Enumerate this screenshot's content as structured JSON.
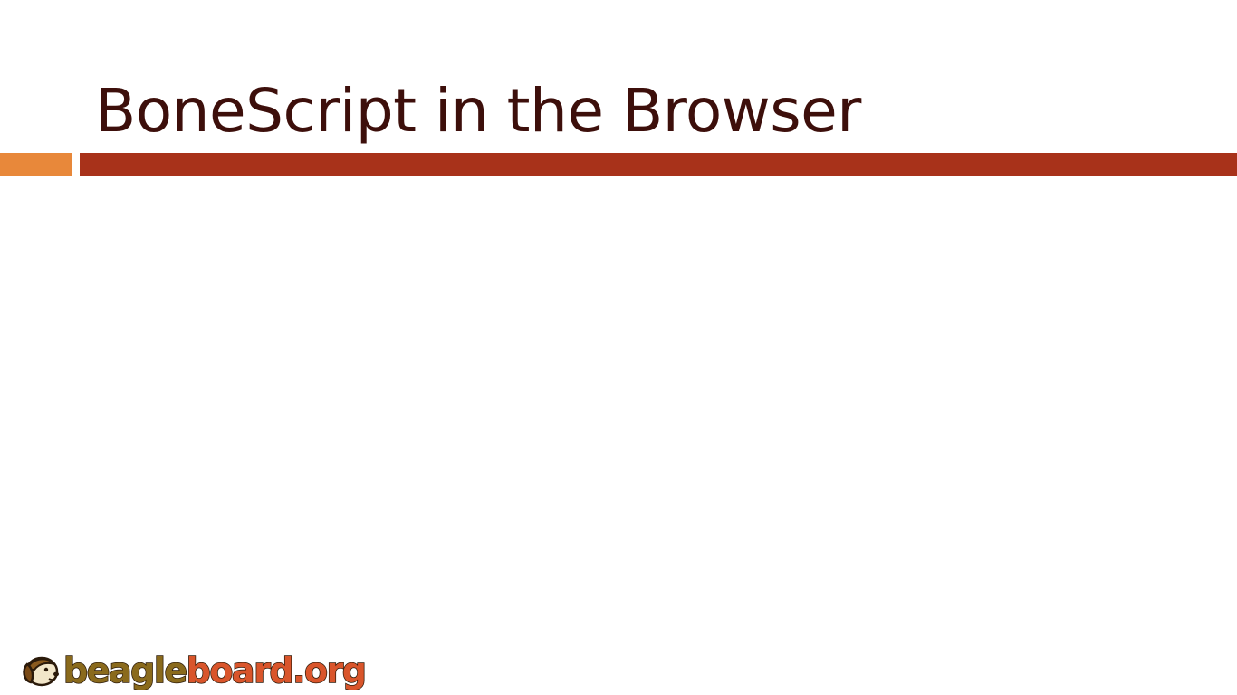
{
  "slide": {
    "title": "BoneScript in the Browser"
  },
  "logo": {
    "part1": "beagle",
    "part2": "board.org",
    "icon": "beagle-dog-icon"
  },
  "colors": {
    "title": "#3d0f0b",
    "bar_orange": "#e8883a",
    "bar_red": "#a8321a",
    "logo_brown": "#8a6a1c",
    "logo_orange": "#d9552b"
  }
}
